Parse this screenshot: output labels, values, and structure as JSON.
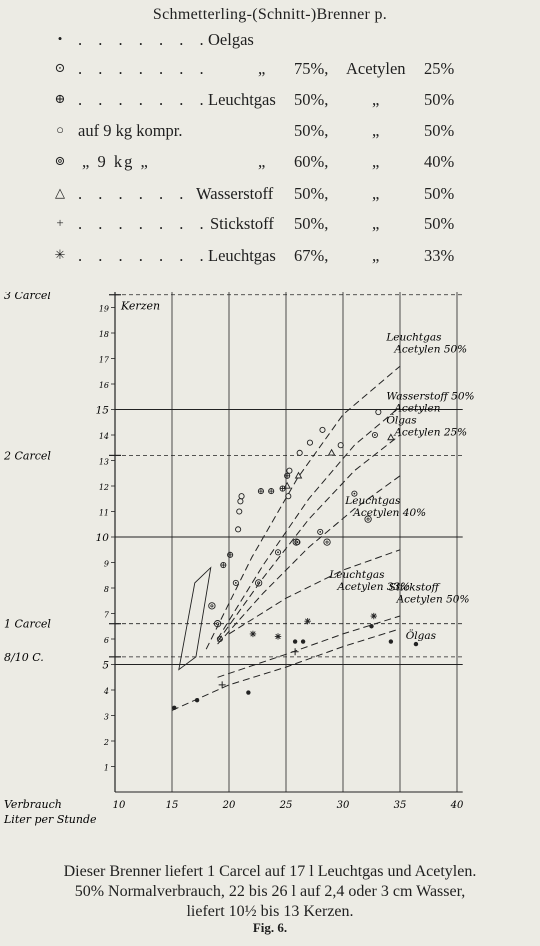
{
  "heading": "Schmetterling-(Schnitt-)Brenner p.",
  "legend": [
    {
      "symbol": "•",
      "dots": ". . . . . . .",
      "label": "Oelgas",
      "q1": "",
      "pct1": "",
      "aux": "",
      "q2": "",
      "pct2": ""
    },
    {
      "symbol": "⊙",
      "dots": ". . . . . . .",
      "label": "",
      "q1": "„",
      "pct1": "75%,",
      "aux": "Acetylen",
      "q2": "",
      "pct2": "25%"
    },
    {
      "symbol": "⊕",
      "dots": ". . . . . . .",
      "label": "Leuchtgas",
      "q1": "",
      "pct1": "50%,",
      "aux": "",
      "q2": "„",
      "pct2": "50%"
    },
    {
      "symbol": "○",
      "dots": "",
      "label": "auf 9 kg kompr.",
      "q1": "",
      "pct1": "50%,",
      "aux": "",
      "q2": "„",
      "pct2": "50%"
    },
    {
      "symbol": "⊚",
      "dots": "„  9 kg      „",
      "label": "",
      "q1": "„",
      "pct1": "60%,",
      "aux": "",
      "q2": "„",
      "pct2": "40%"
    },
    {
      "symbol": "△",
      "dots": ". . . . . . .",
      "label": "Wasserstoff",
      "q1": "",
      "pct1": "50%,",
      "aux": "",
      "q2": "„",
      "pct2": "50%"
    },
    {
      "symbol": "+",
      "dots": ". . . . . . .",
      "label": "Stickstoff",
      "q1": "",
      "pct1": "50%,",
      "aux": "",
      "q2": "„",
      "pct2": "50%"
    },
    {
      "symbol": "✳",
      "dots": ". . . . . . .",
      "label": "Leuchtgas",
      "q1": "",
      "pct1": "67%,",
      "aux": "",
      "q2": "„",
      "pct2": "33%"
    }
  ],
  "chart_data": {
    "type": "scatter",
    "xlabel": "Verbrauch Liter per Stunde",
    "ylabel": "Kerzen",
    "xlim": [
      10,
      40
    ],
    "ylim": [
      0,
      19
    ],
    "x_ticks": [
      10,
      15,
      20,
      25,
      30,
      35,
      40
    ],
    "y_ticks": [
      1,
      2,
      3,
      4,
      5,
      6,
      7,
      8,
      9,
      10,
      11,
      12,
      13,
      14,
      15,
      16,
      17,
      18,
      19
    ],
    "reference_lines": [
      {
        "label": "3 Carcel",
        "y": 19.5
      },
      {
        "label": "2 Carcel",
        "y": 13.2
      },
      {
        "label": "1 Carcel",
        "y": 6.6
      },
      {
        "label": "8/10 C.",
        "y": 5.3
      }
    ],
    "curves": [
      {
        "name": "Leuchtgas Acetylen 50%",
        "x": [
          18,
          22,
          26,
          30,
          35
        ],
        "y": [
          5.6,
          9.2,
          12.3,
          14.8,
          16.7
        ]
      },
      {
        "name": "Wasserstoff 50% Acetylen",
        "x": [
          19,
          23,
          27,
          31,
          35
        ],
        "y": [
          6.0,
          8.9,
          11.5,
          13.6,
          15.1
        ]
      },
      {
        "name": "Ölgas Acetylen 25%",
        "x": [
          19,
          23,
          27,
          31,
          35
        ],
        "y": [
          5.9,
          8.4,
          10.7,
          12.6,
          14.0
        ]
      },
      {
        "name": "Leuchtgas Acetylen 40%",
        "x": [
          19,
          23,
          27,
          31,
          35
        ],
        "y": [
          5.8,
          7.8,
          9.6,
          11.1,
          12.4
        ]
      },
      {
        "name": "Leuchtgas Acetylen 33%",
        "x": [
          20,
          25,
          30,
          35
        ],
        "y": [
          6.2,
          7.6,
          8.7,
          9.5
        ]
      },
      {
        "name": "Stickstoff Acetylen 50%",
        "x": [
          19,
          25,
          30,
          35
        ],
        "y": [
          4.5,
          5.4,
          6.2,
          6.9
        ]
      },
      {
        "name": "Ölgas",
        "x": [
          15,
          20,
          25,
          30,
          35
        ],
        "y": [
          3.2,
          4.2,
          4.9,
          5.7,
          6.4
        ]
      }
    ],
    "curve_labels": [
      {
        "lines": [
          "Leuchtgas",
          "Acetylen 50%"
        ],
        "x": 33.8,
        "y": 17.7
      },
      {
        "lines": [
          "Wasserstoff 50%",
          "Acetylen",
          "Ölgas",
          "Acetylen 25%"
        ],
        "x": 33.8,
        "y": 15.4
      },
      {
        "lines": [
          "Leuchtgas",
          "Acetylen 40%"
        ],
        "x": 30.2,
        "y": 11.3
      },
      {
        "lines": [
          "Leuchtgas",
          "Acetylen 33%"
        ],
        "x": 28.8,
        "y": 8.4
      },
      {
        "lines": [
          "Stickstoff",
          "Acetylen 50%"
        ],
        "x": 34.0,
        "y": 7.9
      },
      {
        "lines": [
          "Ölgas"
        ],
        "x": 35.5,
        "y": 6.0
      }
    ],
    "points": [
      {
        "m": "dot",
        "x": 15.2,
        "y": 3.3
      },
      {
        "m": "dot",
        "x": 17.2,
        "y": 3.6
      },
      {
        "m": "dot",
        "x": 21.7,
        "y": 3.9
      },
      {
        "m": "dot",
        "x": 25.8,
        "y": 5.9
      },
      {
        "m": "dot",
        "x": 26.5,
        "y": 5.9
      },
      {
        "m": "dot",
        "x": 32.5,
        "y": 6.5
      },
      {
        "m": "dot",
        "x": 34.2,
        "y": 5.9
      },
      {
        "m": "dot",
        "x": 36.4,
        "y": 5.8
      },
      {
        "m": "circle",
        "x": 20.8,
        "y": 10.3
      },
      {
        "m": "circle",
        "x": 20.9,
        "y": 11.0
      },
      {
        "m": "circle",
        "x": 21.0,
        "y": 11.4
      },
      {
        "m": "circle",
        "x": 21.1,
        "y": 11.6
      },
      {
        "m": "circle",
        "x": 25.2,
        "y": 11.6
      },
      {
        "m": "circle",
        "x": 25.3,
        "y": 12.6
      },
      {
        "m": "circle",
        "x": 26.2,
        "y": 13.3
      },
      {
        "m": "circle",
        "x": 27.1,
        "y": 13.7
      },
      {
        "m": "circle",
        "x": 28.2,
        "y": 14.2
      },
      {
        "m": "circle",
        "x": 29.8,
        "y": 13.6
      },
      {
        "m": "circle",
        "x": 33.1,
        "y": 14.9
      },
      {
        "m": "cdot",
        "x": 19.2,
        "y": 6.0
      },
      {
        "m": "cdot",
        "x": 20.6,
        "y": 8.2
      },
      {
        "m": "cdot",
        "x": 24.3,
        "y": 9.4
      },
      {
        "m": "cdot",
        "x": 26.0,
        "y": 9.8
      },
      {
        "m": "cdot",
        "x": 28.0,
        "y": 10.2
      },
      {
        "m": "cdot",
        "x": 31.0,
        "y": 11.7
      },
      {
        "m": "cdot",
        "x": 32.8,
        "y": 14.0
      },
      {
        "m": "cplus",
        "x": 19.5,
        "y": 8.9
      },
      {
        "m": "cplus",
        "x": 20.1,
        "y": 9.3
      },
      {
        "m": "cplus",
        "x": 22.8,
        "y": 11.8
      },
      {
        "m": "cplus",
        "x": 23.7,
        "y": 11.8
      },
      {
        "m": "cplus",
        "x": 24.7,
        "y": 11.9
      },
      {
        "m": "cplus",
        "x": 25.1,
        "y": 12.4
      },
      {
        "m": "dcirc",
        "x": 18.5,
        "y": 7.3
      },
      {
        "m": "dcirc",
        "x": 19.0,
        "y": 6.6
      },
      {
        "m": "dcirc",
        "x": 22.6,
        "y": 8.2
      },
      {
        "m": "dcirc",
        "x": 25.9,
        "y": 9.8
      },
      {
        "m": "dcirc",
        "x": 28.6,
        "y": 9.8
      },
      {
        "m": "dcirc",
        "x": 32.2,
        "y": 10.7
      },
      {
        "m": "tri",
        "x": 25.1,
        "y": 12.0
      },
      {
        "m": "tri",
        "x": 26.1,
        "y": 12.4
      },
      {
        "m": "tri",
        "x": 29.0,
        "y": 13.3
      },
      {
        "m": "tri",
        "x": 34.2,
        "y": 13.9
      },
      {
        "m": "plus",
        "x": 19.4,
        "y": 4.2
      },
      {
        "m": "plus",
        "x": 25.8,
        "y": 5.5
      },
      {
        "m": "star",
        "x": 22.1,
        "y": 6.2
      },
      {
        "m": "star",
        "x": 24.3,
        "y": 6.1
      },
      {
        "m": "star",
        "x": 26.9,
        "y": 6.7
      },
      {
        "m": "star",
        "x": 32.7,
        "y": 6.9
      }
    ]
  },
  "caption_lines": [
    "Dieser Brenner liefert 1 Carcel auf 17 l Leuchtgas und Acetylen.",
    "50% Normalverbrauch, 22 bis 26 l auf 2,4 oder 3 cm Wasser,",
    "liefert 10½ bis 13 Kerzen."
  ],
  "figure_label": "Fig. 6."
}
